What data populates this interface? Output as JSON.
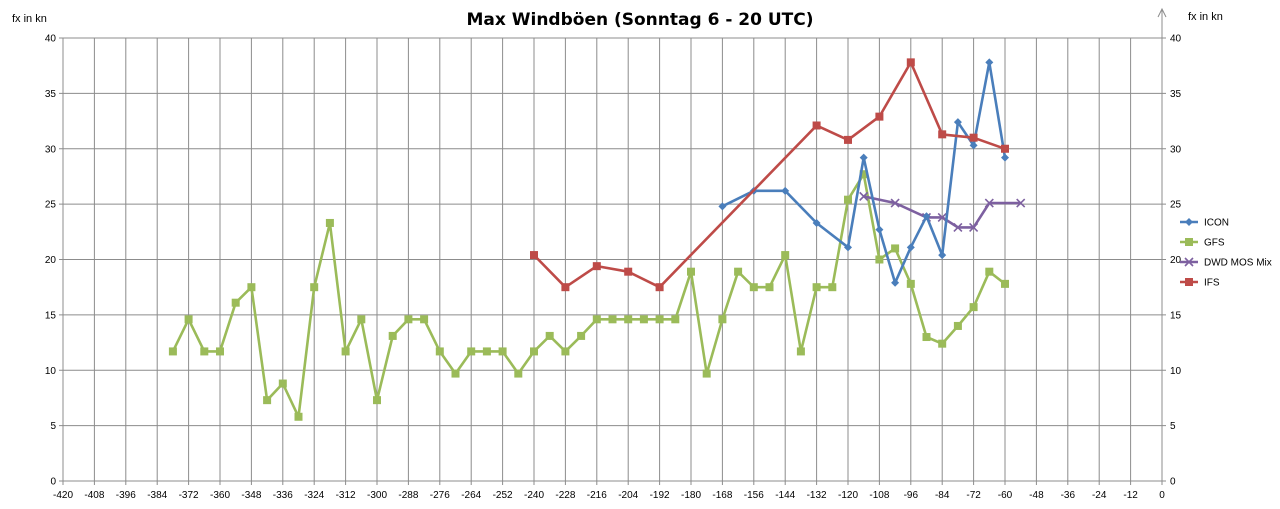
{
  "chart_data": {
    "type": "line",
    "title": "Max Windböen (Sonntag 6 - 20 UTC)",
    "ylabel_left": "fx in kn",
    "ylabel_right": "fx  in kn",
    "xlim": [
      -420,
      0
    ],
    "x_ticks": [
      -420,
      -408,
      -396,
      -384,
      -372,
      -360,
      -348,
      -336,
      -324,
      -312,
      -300,
      -288,
      -276,
      -264,
      -252,
      -240,
      -228,
      -216,
      -204,
      -192,
      -180,
      -168,
      -156,
      -144,
      -132,
      -120,
      -108,
      -96,
      -84,
      -72,
      -60,
      -48,
      -36,
      -24,
      -12,
      0
    ],
    "ylim": [
      0,
      40
    ],
    "y_ticks": [
      0,
      5,
      10,
      15,
      20,
      25,
      30,
      35,
      40
    ],
    "grid": true,
    "legend_position": "right",
    "series": [
      {
        "name": "ICON",
        "color": "#4a7ebb",
        "marker": "diamond",
        "points": [
          [
            -168,
            24.8
          ],
          [
            -156,
            26.2
          ],
          [
            -144,
            26.2
          ],
          [
            -132,
            23.3
          ],
          [
            -120,
            21.1
          ],
          [
            -114,
            29.2
          ],
          [
            -108,
            22.7
          ],
          [
            -102,
            17.9
          ],
          [
            -96,
            21.1
          ],
          [
            -90,
            23.9
          ],
          [
            -84,
            20.4
          ],
          [
            -78,
            32.4
          ],
          [
            -72,
            30.3
          ],
          [
            -66,
            37.8
          ],
          [
            -60,
            29.2
          ]
        ]
      },
      {
        "name": "GFS",
        "color": "#9bbb59",
        "marker": "square",
        "points": [
          [
            -378,
            11.7
          ],
          [
            -372,
            14.6
          ],
          [
            -366,
            11.7
          ],
          [
            -360,
            11.7
          ],
          [
            -354,
            16.1
          ],
          [
            -348,
            17.5
          ],
          [
            -342,
            7.3
          ],
          [
            -336,
            8.8
          ],
          [
            -330,
            5.8
          ],
          [
            -324,
            17.5
          ],
          [
            -318,
            23.3
          ],
          [
            -312,
            11.7
          ],
          [
            -306,
            14.6
          ],
          [
            -300,
            7.3
          ],
          [
            -294,
            13.1
          ],
          [
            -288,
            14.6
          ],
          [
            -282,
            14.6
          ],
          [
            -276,
            11.7
          ],
          [
            -270,
            9.7
          ],
          [
            -264,
            11.7
          ],
          [
            -258,
            11.7
          ],
          [
            -252,
            11.7
          ],
          [
            -246,
            9.7
          ],
          [
            -240,
            11.7
          ],
          [
            -234,
            13.1
          ],
          [
            -228,
            11.7
          ],
          [
            -222,
            13.1
          ],
          [
            -216,
            14.6
          ],
          [
            -210,
            14.6
          ],
          [
            -204,
            14.6
          ],
          [
            -198,
            14.6
          ],
          [
            -192,
            14.6
          ],
          [
            -186,
            14.6
          ],
          [
            -180,
            18.9
          ],
          [
            -174,
            9.7
          ],
          [
            -168,
            14.6
          ],
          [
            -162,
            18.9
          ],
          [
            -156,
            17.5
          ],
          [
            -150,
            17.5
          ],
          [
            -144,
            20.4
          ],
          [
            -138,
            11.7
          ],
          [
            -132,
            17.5
          ],
          [
            -126,
            17.5
          ],
          [
            -120,
            25.4
          ],
          [
            -114,
            27.7
          ],
          [
            -108,
            20.0
          ],
          [
            -102,
            21.0
          ],
          [
            -96,
            17.8
          ],
          [
            -90,
            13.0
          ],
          [
            -84,
            12.4
          ],
          [
            -78,
            14.0
          ],
          [
            -72,
            15.7
          ],
          [
            -66,
            18.9
          ],
          [
            -60,
            17.8
          ]
        ]
      },
      {
        "name": "DWD MOS Mix",
        "color": "#7d60a0",
        "marker": "x",
        "points": [
          [
            -114,
            25.7
          ],
          [
            -102,
            25.1
          ],
          [
            -90,
            23.8
          ],
          [
            -84,
            23.8
          ],
          [
            -78,
            22.9
          ],
          [
            -72,
            22.9
          ],
          [
            -66,
            25.1
          ],
          [
            -54,
            25.1
          ]
        ]
      },
      {
        "name": "IFS",
        "color": "#be4b48",
        "marker": "square",
        "points": [
          [
            -240,
            20.4
          ],
          [
            -228,
            17.5
          ],
          [
            -216,
            19.4
          ],
          [
            -204,
            18.9
          ],
          [
            -192,
            17.5
          ],
          [
            -132,
            32.1
          ],
          [
            -120,
            30.8
          ],
          [
            -108,
            32.9
          ],
          [
            -96,
            37.8
          ],
          [
            -84,
            31.3
          ],
          [
            -72,
            31.0
          ],
          [
            -60,
            30.0
          ]
        ]
      }
    ]
  }
}
